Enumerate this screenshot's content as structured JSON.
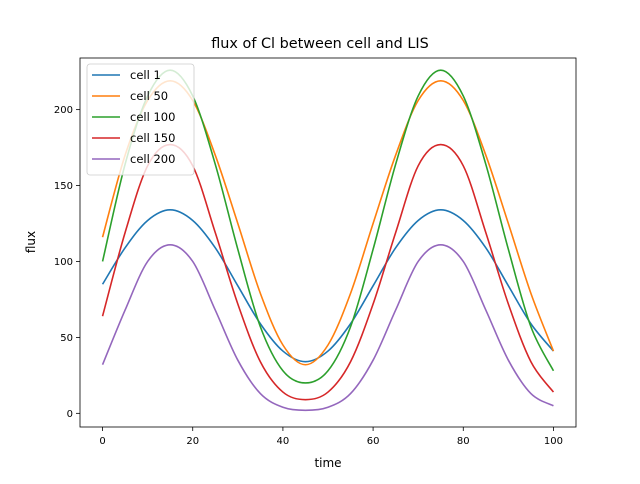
{
  "chart_data": {
    "type": "line",
    "title": "flux of Cl between cell and LIS",
    "xlabel": "time",
    "ylabel": "flux",
    "xlim": [
      -5,
      105
    ],
    "ylim": [
      -9,
      234
    ],
    "xticks": [
      0,
      20,
      40,
      60,
      80,
      100
    ],
    "yticks": [
      0,
      50,
      100,
      150,
      200
    ],
    "grid": false,
    "legend_position": "top-left",
    "series": [
      {
        "name": "cell 1",
        "color": "#1f77b4",
        "x": [
          0,
          5,
          10,
          15,
          20,
          25,
          30,
          35,
          40,
          45,
          50,
          55,
          60,
          65,
          70,
          75,
          80,
          85,
          90,
          95,
          100
        ],
        "y": [
          85,
          109,
          127,
          134,
          127,
          109,
          84,
          59,
          41,
          34,
          41,
          59,
          84,
          109,
          127,
          134,
          127,
          109,
          84,
          59,
          41
        ]
      },
      {
        "name": "cell 50",
        "color": "#ff7f0e",
        "x": [
          0,
          5,
          10,
          15,
          20,
          25,
          30,
          35,
          40,
          45,
          50,
          55,
          60,
          65,
          70,
          75,
          80,
          85,
          90,
          95,
          100
        ],
        "y": [
          116,
          170,
          206,
          219,
          206,
          170,
          125,
          79,
          45,
          32,
          45,
          79,
          125,
          170,
          206,
          219,
          206,
          170,
          125,
          79,
          41
        ]
      },
      {
        "name": "cell 100",
        "color": "#2ca02c",
        "x": [
          0,
          5,
          10,
          15,
          20,
          25,
          30,
          35,
          40,
          45,
          50,
          55,
          60,
          65,
          70,
          75,
          80,
          85,
          90,
          95,
          100
        ],
        "y": [
          100,
          164,
          209,
          226,
          209,
          164,
          108,
          57,
          28,
          20,
          28,
          57,
          108,
          164,
          209,
          226,
          209,
          164,
          108,
          57,
          28
        ]
      },
      {
        "name": "cell 150",
        "color": "#d62728",
        "x": [
          0,
          5,
          10,
          15,
          20,
          25,
          30,
          35,
          40,
          45,
          50,
          55,
          60,
          65,
          70,
          75,
          80,
          85,
          90,
          95,
          100
        ],
        "y": [
          64,
          119,
          163,
          177,
          163,
          119,
          72,
          34,
          14,
          9,
          14,
          34,
          72,
          119,
          163,
          177,
          163,
          119,
          72,
          34,
          14
        ]
      },
      {
        "name": "cell 200",
        "color": "#9467bd",
        "x": [
          0,
          5,
          10,
          15,
          20,
          25,
          30,
          35,
          40,
          45,
          50,
          55,
          60,
          65,
          70,
          75,
          80,
          85,
          90,
          95,
          100
        ],
        "y": [
          32,
          68,
          100,
          111,
          100,
          68,
          35,
          13,
          4,
          2,
          4,
          13,
          35,
          68,
          100,
          111,
          100,
          68,
          35,
          13,
          5
        ]
      }
    ]
  }
}
